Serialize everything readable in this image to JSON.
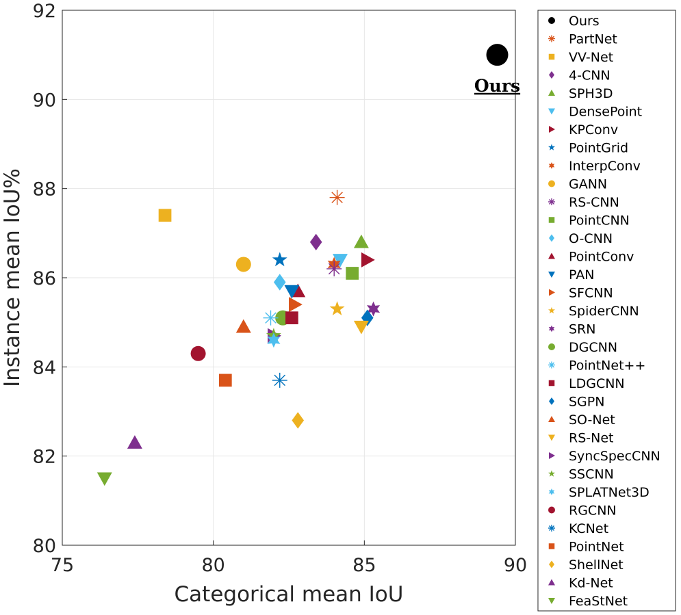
{
  "chart_data": {
    "type": "scatter",
    "title": "",
    "xlabel": "Categorical mean IoU",
    "ylabel": "Instance mean IoU%",
    "xlim": [
      75,
      90
    ],
    "ylim": [
      80,
      92
    ],
    "xticks": [
      "75",
      "80",
      "85",
      "90"
    ],
    "yticks": [
      "80",
      "82",
      "84",
      "86",
      "88",
      "90",
      "92"
    ],
    "grid": true,
    "legend_position": "outside-right",
    "annotation": {
      "text": "Ours",
      "x": 89.4,
      "y": 90.3
    },
    "series": [
      {
        "name": "Ours",
        "marker": "circle",
        "color": "#000000",
        "x": 89.4,
        "y": 91.0
      },
      {
        "name": "PartNet",
        "marker": "asterisk",
        "color": "#D95319",
        "x": 84.1,
        "y": 87.8
      },
      {
        "name": "VV-Net",
        "marker": "square",
        "color": "#EDB120",
        "x": 78.4,
        "y": 87.4
      },
      {
        "name": "4-CNN",
        "marker": "diamond",
        "color": "#7E2F8E",
        "x": 83.4,
        "y": 86.8
      },
      {
        "name": "SPH3D",
        "marker": "triangle-up",
        "color": "#77AC30",
        "x": 84.9,
        "y": 86.8
      },
      {
        "name": "DensePoint",
        "marker": "triangle-down",
        "color": "#4DBEEE",
        "x": 84.2,
        "y": 86.4
      },
      {
        "name": "KPConv",
        "marker": "triangle-right",
        "color": "#A2142F",
        "x": 85.1,
        "y": 86.4
      },
      {
        "name": "PointGrid",
        "marker": "pentagram",
        "color": "#0072BD",
        "x": 82.2,
        "y": 86.4
      },
      {
        "name": "InterpConv",
        "marker": "hexagram",
        "color": "#D95319",
        "x": 84.0,
        "y": 86.3
      },
      {
        "name": "GANN",
        "marker": "circle",
        "color": "#EDB120",
        "x": 81.0,
        "y": 86.3
      },
      {
        "name": "RS-CNN",
        "marker": "asterisk",
        "color": "#7E2F8E",
        "x": 84.0,
        "y": 86.2
      },
      {
        "name": "PointCNN",
        "marker": "square",
        "color": "#77AC30",
        "x": 84.6,
        "y": 86.1
      },
      {
        "name": "O-CNN",
        "marker": "diamond",
        "color": "#4DBEEE",
        "x": 82.2,
        "y": 85.9
      },
      {
        "name": "PointConv",
        "marker": "triangle-up",
        "color": "#A2142F",
        "x": 82.8,
        "y": 85.7
      },
      {
        "name": "PAN",
        "marker": "triangle-down",
        "color": "#0072BD",
        "x": 82.6,
        "y": 85.7
      },
      {
        "name": "SFCNN",
        "marker": "triangle-right",
        "color": "#D95319",
        "x": 82.7,
        "y": 85.4
      },
      {
        "name": "SpiderCNN",
        "marker": "pentagram",
        "color": "#EDB120",
        "x": 84.1,
        "y": 85.3
      },
      {
        "name": "SRN",
        "marker": "hexagram",
        "color": "#7E2F8E",
        "x": 85.3,
        "y": 85.3
      },
      {
        "name": "DGCNN",
        "marker": "circle",
        "color": "#77AC30",
        "x": 82.3,
        "y": 85.1
      },
      {
        "name": "PointNet++",
        "marker": "asterisk",
        "color": "#4DBEEE",
        "x": 81.9,
        "y": 85.1
      },
      {
        "name": "LDGCNN",
        "marker": "square",
        "color": "#A2142F",
        "x": 82.6,
        "y": 85.1
      },
      {
        "name": "SGPN",
        "marker": "diamond",
        "color": "#0072BD",
        "x": 85.1,
        "y": 85.1
      },
      {
        "name": "SO-Net",
        "marker": "triangle-up",
        "color": "#D95319",
        "x": 81.0,
        "y": 84.9
      },
      {
        "name": "RS-Net",
        "marker": "triangle-down",
        "color": "#EDB120",
        "x": 84.9,
        "y": 84.9
      },
      {
        "name": "SyncSpecCNN",
        "marker": "triangle-right",
        "color": "#7E2F8E",
        "x": 82.0,
        "y": 84.7
      },
      {
        "name": "SSCNN",
        "marker": "pentagram",
        "color": "#77AC30",
        "x": 82.0,
        "y": 84.7
      },
      {
        "name": "SPLATNet3D",
        "marker": "hexagram",
        "color": "#4DBEEE",
        "x": 82.0,
        "y": 84.6
      },
      {
        "name": "RGCNN",
        "marker": "circle",
        "color": "#A2142F",
        "x": 79.5,
        "y": 84.3
      },
      {
        "name": "KCNet",
        "marker": "asterisk",
        "color": "#0072BD",
        "x": 82.2,
        "y": 83.7
      },
      {
        "name": "PointNet",
        "marker": "square",
        "color": "#D95319",
        "x": 80.4,
        "y": 83.7
      },
      {
        "name": "ShellNet",
        "marker": "diamond",
        "color": "#EDB120",
        "x": 82.8,
        "y": 82.8
      },
      {
        "name": "Kd-Net",
        "marker": "triangle-up",
        "color": "#7E2F8E",
        "x": 77.4,
        "y": 82.3
      },
      {
        "name": "FeaStNet",
        "marker": "triangle-down",
        "color": "#77AC30",
        "x": 76.4,
        "y": 81.5
      }
    ]
  }
}
